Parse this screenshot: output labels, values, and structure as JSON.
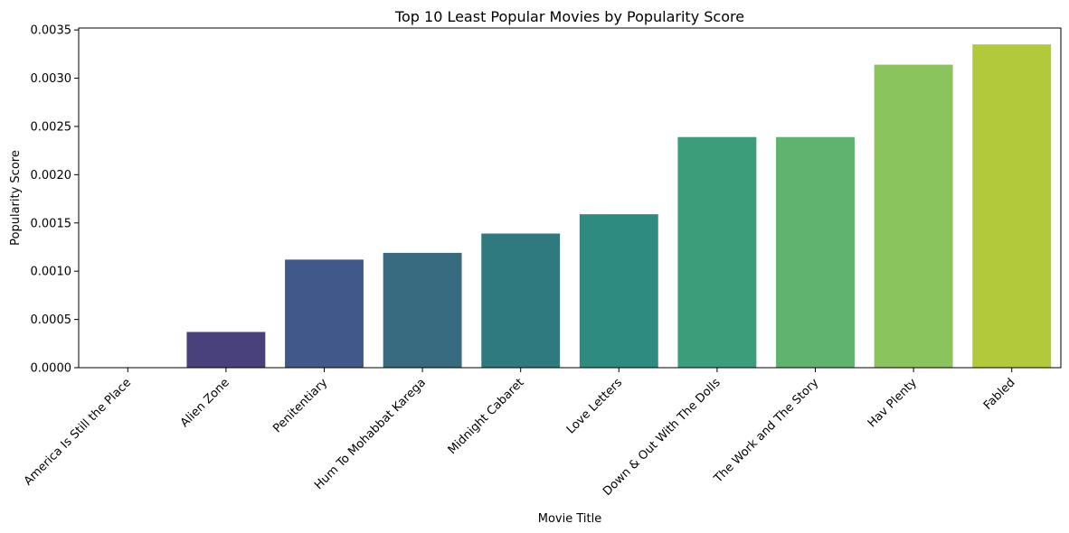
{
  "chart_data": {
    "type": "bar",
    "title": "Top 10 Least Popular Movies by Popularity Score",
    "xlabel": "Movie Title",
    "ylabel": "Popularity Score",
    "ylim": [
      0,
      0.00352
    ],
    "yticks": [
      "0.0000",
      "0.0005",
      "0.0010",
      "0.0015",
      "0.0020",
      "0.0025",
      "0.0030",
      "0.0035"
    ],
    "grid": false,
    "categories": [
      "America Is Still the Place",
      "Alien Zone",
      "Penitentiary",
      "Hum To Mohabbat Karega",
      "Midnight Cabaret",
      "Love Letters",
      "Down & Out With The Dolls",
      "The Work and The Story",
      "Hav Plenty",
      "Fabled"
    ],
    "values": [
      0.0,
      0.00037,
      0.00112,
      0.00119,
      0.00139,
      0.00159,
      0.00239,
      0.00239,
      0.00314,
      0.00335
    ],
    "colors": [
      "#440154",
      "#48417c",
      "#41598a",
      "#386b80",
      "#2f7a7f",
      "#2e8b7f",
      "#3b9d79",
      "#5fb36e",
      "#89c45d",
      "#b2c93a"
    ]
  }
}
